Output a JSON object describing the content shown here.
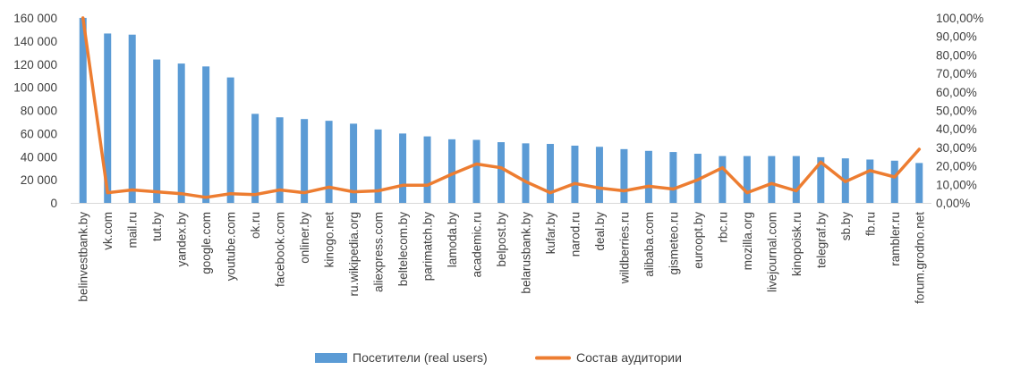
{
  "chart_data": {
    "type": "bar",
    "categories": [
      "belinvestbank.by",
      "vk.com",
      "mail.ru",
      "tut.by",
      "yandex.by",
      "google.com",
      "youtube.com",
      "ok.ru",
      "facebook.com",
      "onliner.by",
      "kinogo.net",
      "ru.wikipedia.org",
      "aliexpress.com",
      "beltelecom.by",
      "parimatch.by",
      "lamoda.by",
      "academic.ru",
      "belpost.by",
      "belarusbank.by",
      "kufar.by",
      "narod.ru",
      "deal.by",
      "wildberries.ru",
      "alibaba.com",
      "gismeteo.ru",
      "euroopt.by",
      "rbc.ru",
      "mozilla.org",
      "livejournal.com",
      "kinopoisk.ru",
      "telegraf.by",
      "sb.by",
      "fb.ru",
      "rambler.ru",
      "forum.grodno.net"
    ],
    "series": [
      {
        "name": "Посетители (real users)",
        "axis": "left",
        "kind": "bar",
        "color": "#5B9BD5",
        "values": [
          160000,
          146500,
          145500,
          124000,
          120500,
          118000,
          108500,
          77000,
          74000,
          72500,
          71000,
          68500,
          63500,
          60000,
          57500,
          55000,
          54500,
          52500,
          51500,
          51000,
          49500,
          48500,
          46500,
          45000,
          44000,
          42500,
          40500,
          40500,
          40500,
          40500,
          39500,
          38500,
          37500,
          36500,
          34500
        ]
      },
      {
        "name": "Состав аудитории",
        "axis": "right",
        "kind": "line",
        "color": "#ED7D31",
        "values": [
          100,
          5.5,
          7,
          6,
          5,
          3,
          5,
          4.5,
          7,
          5.5,
          8.5,
          6,
          6.5,
          9.5,
          9.5,
          15.5,
          21,
          19,
          11.5,
          5.5,
          10.5,
          8,
          6.5,
          9,
          7.5,
          12.5,
          19,
          5.5,
          10.5,
          6.5,
          22,
          11.5,
          17.5,
          14,
          29
        ]
      }
    ],
    "y_left": {
      "min": 0,
      "max": 160000,
      "step": 20000,
      "tick_labels": [
        "0",
        "20 000",
        "40 000",
        "60 000",
        "80 000",
        "100 000",
        "120 000",
        "140 000",
        "160 000"
      ]
    },
    "y_right": {
      "min": 0,
      "max": 100,
      "step": 10,
      "tick_labels": [
        "0,00%",
        "10,00%",
        "20,00%",
        "30,00%",
        "40,00%",
        "50,00%",
        "60,00%",
        "70,00%",
        "80,00%",
        "90,00%",
        "100,00%"
      ]
    },
    "grid": false,
    "legend": {
      "position": "bottom",
      "items": [
        {
          "label": "Посетители (real users)",
          "color": "#5B9BD5",
          "marker": "bar"
        },
        {
          "label": "Состав аудитории",
          "color": "#ED7D31",
          "marker": "line"
        }
      ]
    },
    "title": "",
    "xlabel": "",
    "ylabel": ""
  }
}
